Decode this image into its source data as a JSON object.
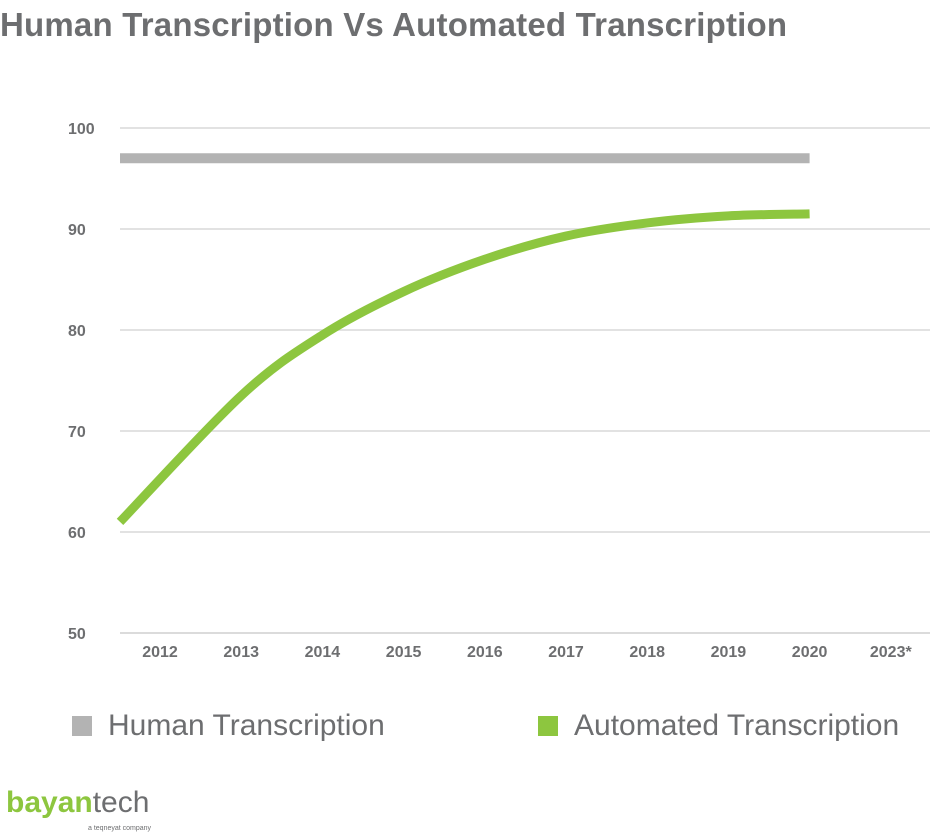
{
  "colors": {
    "human": "#b3b3b3",
    "automated": "#8dc63f",
    "text": "#6d6e70",
    "grid": "#d9d9d9"
  },
  "legend": {
    "human_label": "Human Transcription",
    "automated_label": "Automated Transcription"
  },
  "brand": {
    "name_part1": "bayan",
    "name_part2": "tech",
    "tagline": "a teqneyat company"
  },
  "chart_data": {
    "type": "line",
    "title": "Human Transcription Vs Automated Transcription",
    "xlabel": "",
    "ylabel": "",
    "categories": [
      "2012",
      "2013",
      "2014",
      "2015",
      "2016",
      "2017",
      "2018",
      "2019",
      "2020",
      "2023*"
    ],
    "ylim": [
      50,
      100
    ],
    "yticks": [
      50,
      60,
      70,
      80,
      90,
      100
    ],
    "grid": true,
    "legend_position": "bottom",
    "series": [
      {
        "name": "Human Transcription",
        "color": "#b3b3b3",
        "values": [
          97,
          97,
          97,
          97,
          97,
          97,
          97,
          97,
          97,
          null
        ]
      },
      {
        "name": "Automated Transcription",
        "color": "#8dc63f",
        "smooth": true,
        "values": [
          61,
          73.5,
          79.5,
          83.8,
          87,
          89.3,
          90.6,
          91.3,
          91.5,
          null
        ]
      }
    ]
  }
}
